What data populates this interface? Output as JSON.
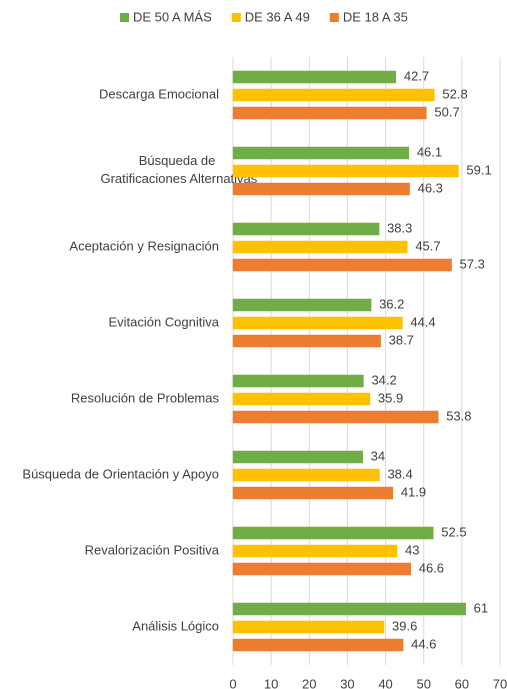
{
  "chart_data": {
    "type": "hbar",
    "categories": [
      "Descarga Emocional",
      "Búsqueda de Gratificaciones Alternativas",
      "Aceptación y Resignación",
      "Evitación Cognitiva",
      "Resolución de Problemas",
      "Búsqueda de Orientación y Apoyo",
      "Revalorización Positiva",
      "Análisis Lógico"
    ],
    "series": [
      {
        "name": "DE 50 A MÁS",
        "color": "#70ad47",
        "values": [
          42.7,
          46.1,
          38.3,
          36.2,
          34.2,
          34,
          52.5,
          61
        ]
      },
      {
        "name": "DE 36 A 49",
        "color": "#ffc000",
        "values": [
          52.8,
          59.1,
          45.7,
          44.4,
          35.9,
          38.4,
          43,
          39.6
        ]
      },
      {
        "name": "DE 18 A 35",
        "color": "#ed7d31",
        "values": [
          50.7,
          46.3,
          57.3,
          38.7,
          53.8,
          41.9,
          46.6,
          44.6
        ]
      }
    ],
    "xlim": [
      0,
      70
    ],
    "xticks": [
      0,
      10,
      20,
      30,
      40,
      50,
      60,
      70
    ],
    "grid": true,
    "legend": "top"
  }
}
